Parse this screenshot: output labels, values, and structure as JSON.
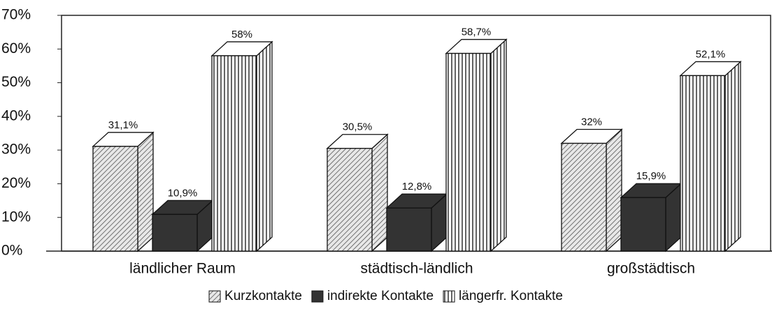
{
  "chart_data": {
    "type": "bar3d",
    "categories": [
      "ländlicher Raum",
      "städtisch-ländlich",
      "großstädtisch"
    ],
    "series": [
      {
        "name": "Kurzkontakte",
        "color": "#555555",
        "pattern": "diagonal",
        "values": [
          31.1,
          30.5,
          32
        ],
        "value_labels": [
          "31,1%",
          "30,5%",
          "32%"
        ]
      },
      {
        "name": "indirekte Kontakte",
        "color": "#333333",
        "pattern": "solid",
        "values": [
          10.9,
          12.8,
          15.9
        ],
        "value_labels": [
          "10,9%",
          "12,8%",
          "15,9%"
        ]
      },
      {
        "name": "längerfr. Kontakte",
        "color": "#222222",
        "pattern": "vertical",
        "values": [
          58,
          58.7,
          52.1
        ],
        "value_labels": [
          "58%",
          "58,7%",
          "52,1%"
        ]
      }
    ],
    "ylim": [
      0,
      70
    ],
    "yticks": [
      {
        "value": 0,
        "label": "0%"
      },
      {
        "value": 10,
        "label": "10%"
      },
      {
        "value": 20,
        "label": "20%"
      },
      {
        "value": 30,
        "label": "30%"
      },
      {
        "value": 40,
        "label": "40%"
      },
      {
        "value": 50,
        "label": "50%"
      },
      {
        "value": 60,
        "label": "60%"
      },
      {
        "value": 70,
        "label": "70%"
      }
    ],
    "legend": "bottom"
  }
}
